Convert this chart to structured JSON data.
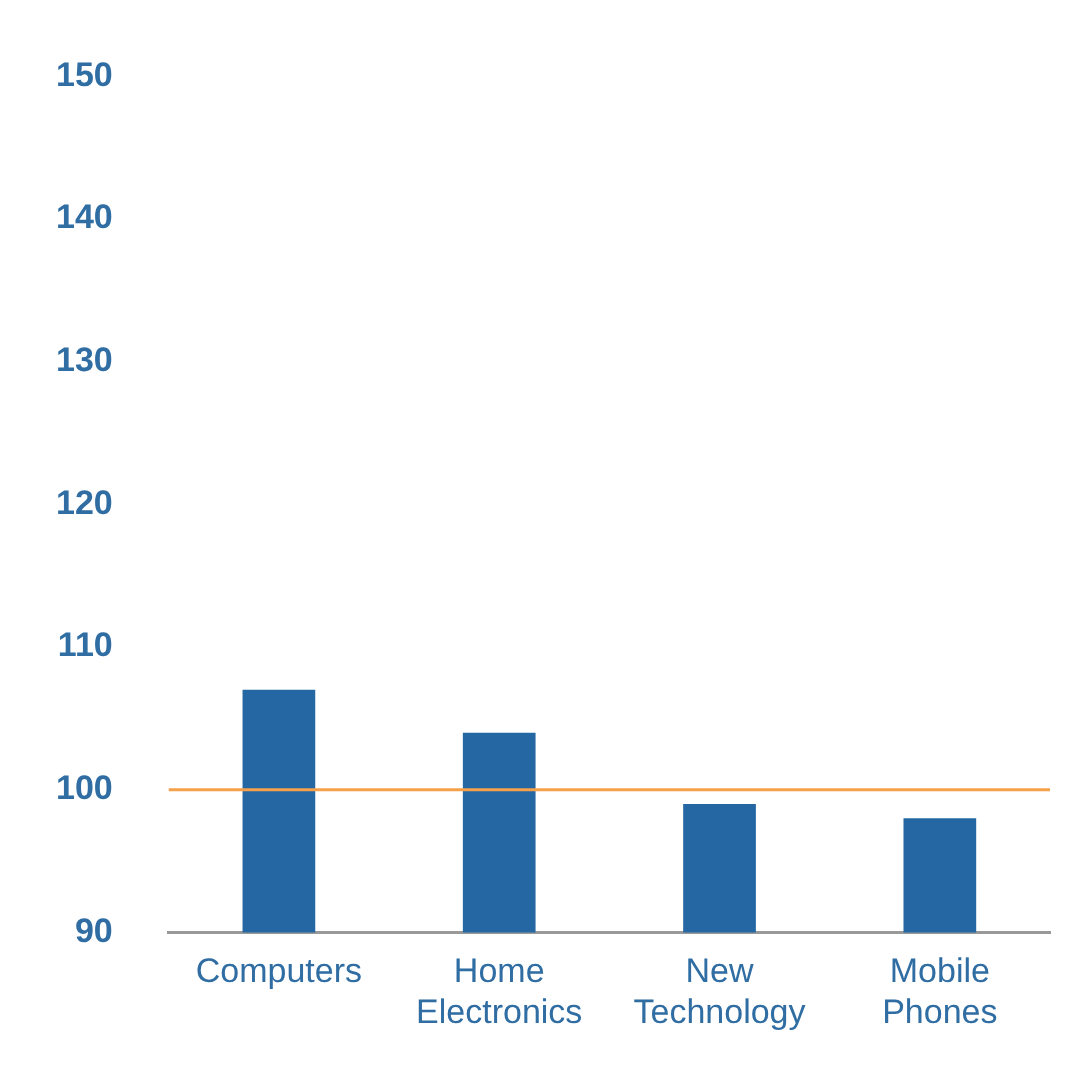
{
  "chart_data": {
    "type": "bar",
    "categories": [
      "Computers",
      "Home Electronics",
      "New Technology",
      "Mobile Phones"
    ],
    "values": [
      107,
      104,
      99,
      98
    ],
    "color": "#2467a3",
    "ylim": [
      90,
      150
    ],
    "yticks": [
      90,
      100,
      110,
      120,
      130,
      140,
      150
    ],
    "grid": false,
    "ref_lines": [
      {
        "axis": "y",
        "value": 100,
        "color": "#f5a04a"
      }
    ]
  }
}
